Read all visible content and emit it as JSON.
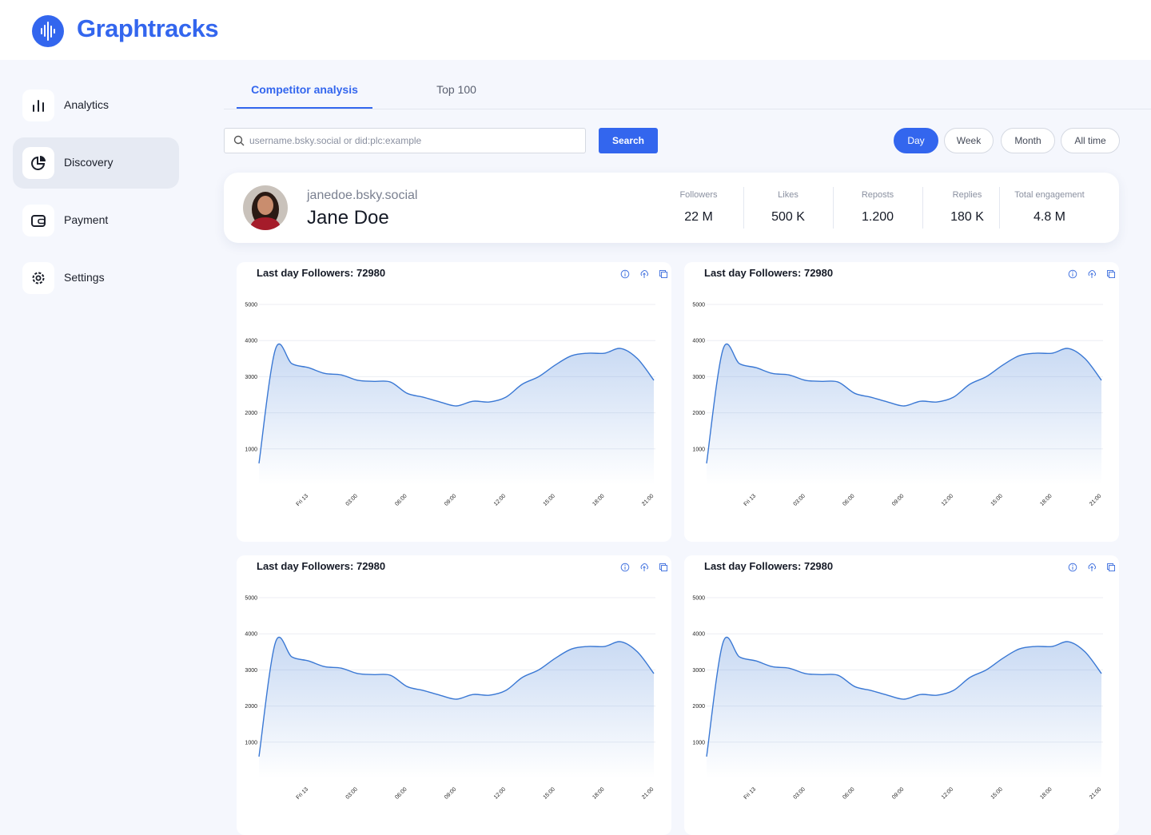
{
  "header": {
    "brand": "Graphtracks"
  },
  "nav": [
    "Analytics",
    "Discovery",
    "Payment",
    "Settings"
  ],
  "tabs": [
    "Competitor analysis",
    "Top 100"
  ],
  "search": {
    "placeholder": "username.bsky.social or did:plc:example",
    "button": "Search"
  },
  "periods": [
    "Day",
    "Week",
    "Month",
    "All time"
  ],
  "profile": {
    "handle": "janedoe.bsky.social",
    "name": "Jane Doe",
    "stats": [
      {
        "label": "Followers",
        "value": "22 M"
      },
      {
        "label": "Likes",
        "value": "500 K"
      },
      {
        "label": "Reposts",
        "value": "1.200"
      },
      {
        "label": "Replies",
        "value": "180 K"
      },
      {
        "label": "Total engagement",
        "value": "4.8 M"
      }
    ]
  },
  "chart_data": [
    {
      "type": "area",
      "title": "Last day Followers: 72980",
      "color": "#3a78d4",
      "categories": [
        null,
        null,
        null,
        "Fri 13",
        null,
        null,
        "03:00",
        null,
        null,
        "06:00",
        null,
        null,
        "09:00",
        null,
        null,
        "12:00",
        null,
        null,
        "15:00",
        null,
        null,
        "18:00",
        null,
        null,
        "21:00"
      ],
      "values": [
        600,
        3760,
        3360,
        3250,
        3090,
        3050,
        2900,
        2870,
        2850,
        2540,
        2430,
        2300,
        2190,
        2320,
        2300,
        2430,
        2790,
        3000,
        3320,
        3580,
        3650,
        3650,
        3780,
        3500,
        2900
      ],
      "ylim": [
        0,
        5000
      ],
      "yticks": [
        1000,
        2000,
        3000,
        4000,
        5000
      ],
      "grid": true
    },
    {
      "type": "area",
      "title": "Last day Followers: 72980",
      "color": "#3a78d4",
      "categories": [
        null,
        null,
        null,
        "Fri 13",
        null,
        null,
        "03:00",
        null,
        null,
        "06:00",
        null,
        null,
        "09:00",
        null,
        null,
        "12:00",
        null,
        null,
        "15:00",
        null,
        null,
        "18:00",
        null,
        null,
        "21:00"
      ],
      "values": [
        600,
        3760,
        3360,
        3250,
        3090,
        3050,
        2900,
        2870,
        2850,
        2540,
        2430,
        2300,
        2190,
        2320,
        2300,
        2430,
        2790,
        3000,
        3320,
        3580,
        3650,
        3650,
        3780,
        3500,
        2900
      ],
      "ylim": [
        0,
        5000
      ],
      "yticks": [
        1000,
        2000,
        3000,
        4000,
        5000
      ],
      "grid": true
    },
    {
      "type": "area",
      "title": "Last day Followers: 72980",
      "color": "#3a78d4",
      "categories": [
        null,
        null,
        null,
        "Fri 13",
        null,
        null,
        "03:00",
        null,
        null,
        "06:00",
        null,
        null,
        "09:00",
        null,
        null,
        "12:00",
        null,
        null,
        "15:00",
        null,
        null,
        "18:00",
        null,
        null,
        "21:00"
      ],
      "values": [
        600,
        3760,
        3360,
        3250,
        3090,
        3050,
        2900,
        2870,
        2850,
        2540,
        2430,
        2300,
        2190,
        2320,
        2300,
        2430,
        2790,
        3000,
        3320,
        3580,
        3650,
        3650,
        3780,
        3500,
        2900
      ],
      "ylim": [
        0,
        5000
      ],
      "yticks": [
        1000,
        2000,
        3000,
        4000,
        5000
      ],
      "grid": true
    },
    {
      "type": "area",
      "title": "Last day Followers: 72980",
      "color": "#3a78d4",
      "categories": [
        null,
        null,
        null,
        "Fri 13",
        null,
        null,
        "03:00",
        null,
        null,
        "06:00",
        null,
        null,
        "09:00",
        null,
        null,
        "12:00",
        null,
        null,
        "15:00",
        null,
        null,
        "18:00",
        null,
        null,
        "21:00"
      ],
      "values": [
        600,
        3760,
        3360,
        3250,
        3090,
        3050,
        2900,
        2870,
        2850,
        2540,
        2430,
        2300,
        2190,
        2320,
        2300,
        2430,
        2790,
        3000,
        3320,
        3580,
        3650,
        3650,
        3780,
        3500,
        2900
      ],
      "ylim": [
        0,
        5000
      ],
      "yticks": [
        1000,
        2000,
        3000,
        4000,
        5000
      ],
      "grid": true
    }
  ]
}
